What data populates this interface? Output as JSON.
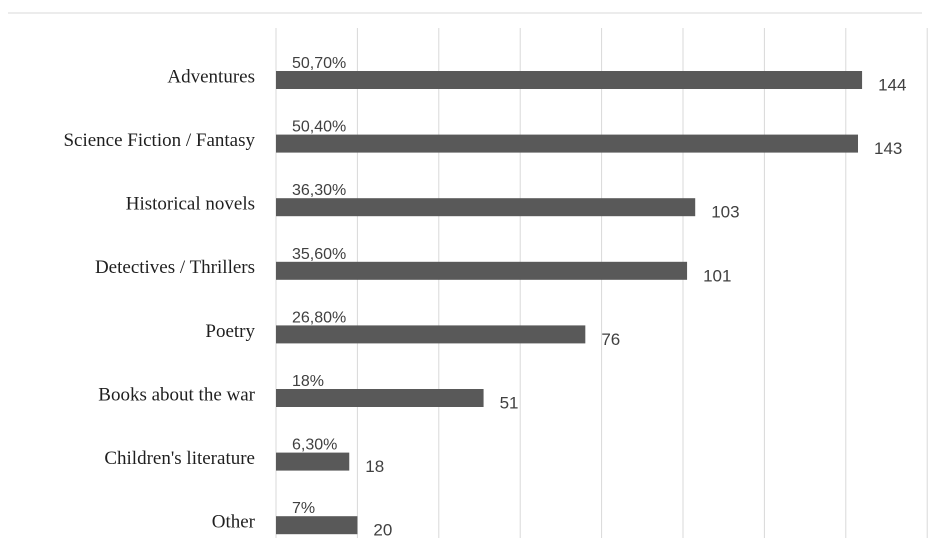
{
  "colors": {
    "bar": "#595959",
    "grid": "#d9d9d9",
    "text": "#404040",
    "category_text": "#1f1f1f"
  },
  "chart_data": {
    "type": "bar",
    "orientation": "horizontal",
    "categories": [
      "Adventures",
      "Science Fiction / Fantasy",
      "Historical novels",
      "Detectives / Thrillers",
      "Poetry",
      "Books about the war",
      "Children's literature",
      "Other"
    ],
    "values": [
      144,
      143,
      103,
      101,
      76,
      51,
      18,
      20
    ],
    "percent_labels": [
      "50,70%",
      "50,40%",
      "36,30%",
      "35,60%",
      "26,80%",
      "18%",
      "6,30%",
      "7%"
    ],
    "xlim": [
      0,
      160
    ],
    "grid": true,
    "grid_step": 20,
    "axis_tick_labels_shown": false,
    "legend": "none"
  }
}
